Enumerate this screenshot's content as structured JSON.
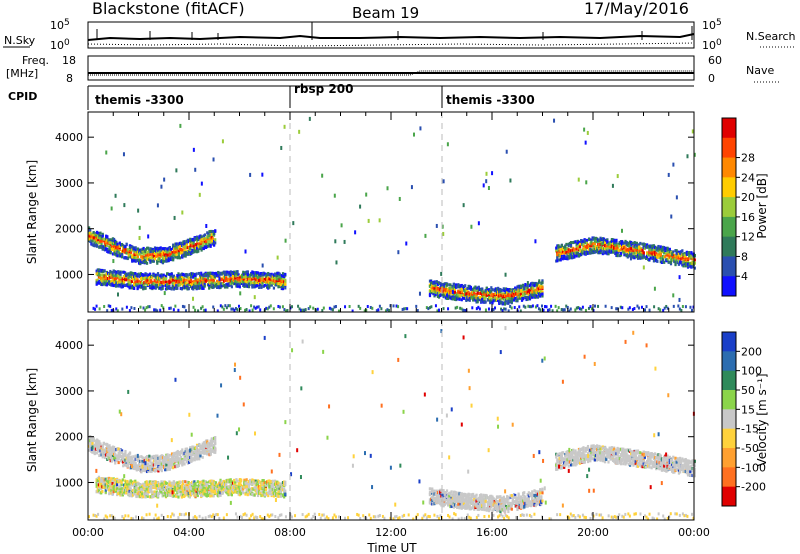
{
  "header": {
    "station": "Blackstone (fitACF)",
    "beam": "Beam 19",
    "date": "17/May/2016"
  },
  "panels": {
    "nsky": {
      "left_label": "N.Sky",
      "right_label": "N.Search",
      "tick_top": "10^5",
      "tick_bottom": "10^0",
      "right_tick_top": "10^5",
      "right_tick_bottom": "10^0"
    },
    "freq": {
      "label_line1": "Freq.",
      "label_line2": "[MHz]",
      "right_label": "Nave",
      "tick_top": "18",
      "tick_bottom": "8",
      "right_tick_top": "60",
      "right_tick_bottom": "0"
    },
    "cpid": {
      "label": "CPID",
      "segments": [
        {
          "label": "themis -3300",
          "start": 0
        },
        {
          "label": "rbsp 200",
          "start": 8
        },
        {
          "label": "themis -3300",
          "start": 14
        }
      ]
    }
  },
  "power_colorbar": {
    "label": "Power [dB]",
    "ticks": [
      "4",
      "8",
      "12",
      "16",
      "20",
      "24",
      "28"
    ],
    "colors": [
      "#1010ff",
      "#2a4fb0",
      "#2f7a5a",
      "#4aa54a",
      "#9bcc3a",
      "#ffcc00",
      "#ff8800",
      "#ff4400",
      "#e00000"
    ]
  },
  "velocity_colorbar": {
    "label": "Velocity [m s⁻¹]",
    "ticks": [
      "200",
      "100",
      "50",
      "15",
      "-15",
      "-50",
      "-100",
      "-200"
    ],
    "colors": [
      "#1a3fc8",
      "#2c6db0",
      "#2f8a5a",
      "#8bd44a",
      "#c8c8c8",
      "#ffd23c",
      "#ffa030",
      "#ff7020",
      "#e00000"
    ]
  },
  "chart_data": [
    {
      "type": "heatmap",
      "name": "power",
      "xlabel": "",
      "ylabel": "Slant Range [km]",
      "xlim": [
        0,
        24
      ],
      "ylim": [
        180,
        4550
      ],
      "yticks": [
        1000,
        2000,
        3000,
        4000
      ],
      "xticks": [
        "00:00",
        "04:00",
        "08:00",
        "12:00",
        "16:00",
        "20:00",
        "00:00"
      ],
      "bands": [
        {
          "x": [
            0.0,
            1.0,
            2.0,
            3.0,
            4.0,
            5.0
          ],
          "y": [
            1850,
            1600,
            1400,
            1420,
            1600,
            1820
          ]
        },
        {
          "x": [
            0.3,
            2.0,
            4.0,
            6.0,
            7.8
          ],
          "y": [
            950,
            850,
            850,
            900,
            850
          ]
        },
        {
          "x": [
            13.5,
            15.0,
            16.5,
            18.0
          ],
          "y": [
            700,
            580,
            520,
            700
          ]
        },
        {
          "x": [
            18.5,
            20.0,
            22.0,
            24.0
          ],
          "y": [
            1450,
            1650,
            1500,
            1300
          ]
        }
      ]
    },
    {
      "type": "heatmap",
      "name": "velocity",
      "xlabel": "Time UT",
      "ylabel": "Slant Range [km]",
      "xlim": [
        0,
        24
      ],
      "ylim": [
        180,
        4550
      ],
      "yticks": [
        1000,
        2000,
        3000,
        4000
      ],
      "xticks": [
        "00:00",
        "04:00",
        "08:00",
        "12:00",
        "16:00",
        "20:00",
        "00:00"
      ],
      "bands": [
        {
          "x": [
            0.0,
            1.0,
            2.0,
            3.0,
            4.0,
            5.0
          ],
          "y": [
            1850,
            1600,
            1400,
            1420,
            1600,
            1820
          ]
        },
        {
          "x": [
            0.3,
            2.0,
            4.0,
            6.0,
            7.8
          ],
          "y": [
            950,
            850,
            850,
            900,
            850
          ]
        },
        {
          "x": [
            13.5,
            15.0,
            16.5,
            18.0
          ],
          "y": [
            700,
            580,
            520,
            700
          ]
        },
        {
          "x": [
            18.5,
            20.0,
            22.0,
            24.0
          ],
          "y": [
            1450,
            1650,
            1500,
            1300
          ]
        }
      ]
    }
  ]
}
